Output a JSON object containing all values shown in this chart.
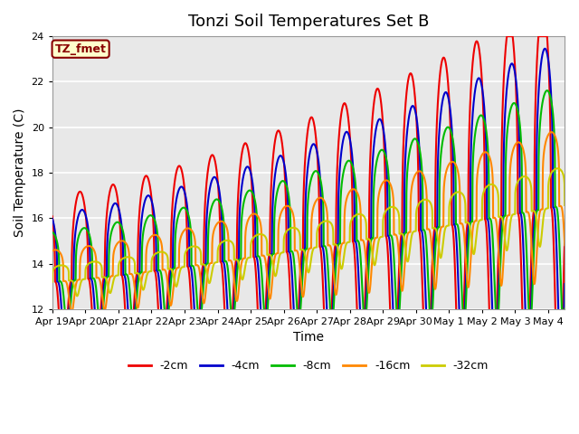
{
  "title": "Tonzi Soil Temperatures Set B",
  "xlabel": "Time",
  "ylabel": "Soil Temperature (C)",
  "ylim": [
    12,
    24
  ],
  "bg_color": "#e8e8e8",
  "grid_color": "#ffffff",
  "annotation_text": "TZ_fmet",
  "annotation_bg": "#ffffcc",
  "annotation_border": "#880000",
  "legend_labels": [
    "-2cm",
    "-4cm",
    "-8cm",
    "-16cm",
    "-32cm"
  ],
  "line_colors": [
    "#ee0000",
    "#0000cc",
    "#00bb00",
    "#ff8800",
    "#cccc00"
  ],
  "line_width": 1.5,
  "x_tick_labels": [
    "Apr 19",
    "Apr 20",
    "Apr 21",
    "Apr 22",
    "Apr 23",
    "Apr 24",
    "Apr 25",
    "Apr 26",
    "Apr 27",
    "Apr 28",
    "Apr 29",
    "Apr 30",
    "May 1",
    "May 2",
    "May 3",
    "May 4"
  ],
  "yticks": [
    12,
    14,
    16,
    18,
    20,
    22,
    24
  ]
}
